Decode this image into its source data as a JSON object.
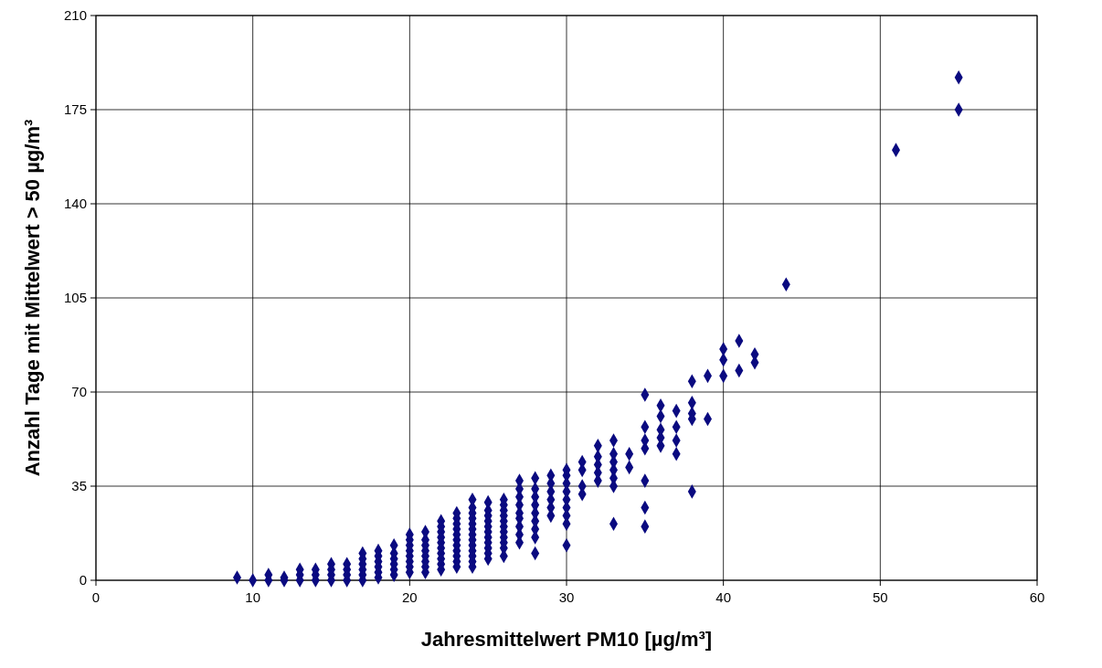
{
  "chart_data": {
    "type": "scatter",
    "xlabel": "Jahresmittelwert PM10 [µg/m³]",
    "ylabel": "Anzahl Tage mit Mittelwert  > 50 µg/m³",
    "xlim": [
      0,
      60
    ],
    "xticks": [
      0,
      10,
      20,
      30,
      40,
      50,
      60
    ],
    "ylim": [
      0,
      210
    ],
    "yticks": [
      0,
      35,
      70,
      105,
      140,
      175,
      210
    ],
    "grid": true,
    "marker": "diamond",
    "series": [
      {
        "color": "#0a0a80",
        "x": [
          9,
          10,
          11,
          11,
          12,
          12,
          13,
          13,
          13,
          14,
          14,
          14,
          15,
          15,
          15,
          15,
          16,
          16,
          16,
          16,
          17,
          17,
          17,
          17,
          17,
          17,
          18,
          18,
          18,
          18,
          18,
          18,
          19,
          19,
          19,
          19,
          19,
          19,
          20,
          20,
          20,
          20,
          20,
          20,
          20,
          20,
          21,
          21,
          21,
          21,
          21,
          21,
          21,
          21,
          22,
          22,
          22,
          22,
          22,
          22,
          22,
          22,
          22,
          22,
          23,
          23,
          23,
          23,
          23,
          23,
          23,
          23,
          23,
          23,
          23,
          24,
          24,
          24,
          24,
          24,
          24,
          24,
          24,
          24,
          24,
          24,
          24,
          24,
          25,
          25,
          25,
          25,
          25,
          25,
          25,
          25,
          25,
          25,
          25,
          26,
          26,
          26,
          26,
          26,
          26,
          26,
          26,
          26,
          26,
          26,
          27,
          27,
          27,
          27,
          27,
          27,
          27,
          27,
          27,
          28,
          28,
          28,
          28,
          28,
          28,
          28,
          28,
          28,
          29,
          29,
          29,
          29,
          29,
          29,
          30,
          30,
          30,
          30,
          30,
          30,
          30,
          30,
          30,
          31,
          31,
          31,
          31,
          32,
          32,
          32,
          32,
          32,
          33,
          33,
          33,
          33,
          33,
          33,
          33,
          34,
          34,
          35,
          35,
          35,
          35,
          35,
          35,
          35,
          36,
          36,
          36,
          36,
          36,
          37,
          37,
          37,
          37,
          38,
          38,
          38,
          38,
          38,
          39,
          39,
          40,
          40,
          40,
          41,
          41,
          42,
          42,
          44,
          51,
          55,
          55
        ],
        "values": [
          1,
          0,
          0,
          2,
          0,
          1,
          0,
          2,
          4,
          0,
          2,
          4,
          0,
          2,
          4,
          6,
          0,
          2,
          4,
          6,
          0,
          2,
          4,
          6,
          8,
          10,
          1,
          3,
          5,
          7,
          9,
          11,
          2,
          4,
          6,
          8,
          10,
          13,
          3,
          5,
          7,
          9,
          11,
          13,
          15,
          17,
          3,
          5,
          7,
          9,
          11,
          13,
          15,
          18,
          4,
          6,
          8,
          10,
          12,
          14,
          16,
          18,
          20,
          22,
          5,
          7,
          9,
          11,
          13,
          15,
          17,
          19,
          21,
          23,
          25,
          5,
          7,
          9,
          11,
          13,
          15,
          17,
          19,
          21,
          23,
          25,
          27,
          30,
          8,
          10,
          12,
          14,
          16,
          18,
          20,
          22,
          24,
          26,
          29,
          9,
          12,
          14,
          16,
          18,
          20,
          22,
          24,
          26,
          28,
          30,
          14,
          17,
          20,
          23,
          25,
          28,
          31,
          34,
          37,
          10,
          16,
          19,
          22,
          25,
          28,
          31,
          34,
          38,
          24,
          27,
          30,
          33,
          36,
          39,
          13,
          21,
          24,
          27,
          30,
          33,
          36,
          39,
          41,
          32,
          35,
          41,
          44,
          37,
          40,
          43,
          46,
          50,
          21,
          35,
          38,
          41,
          44,
          47,
          52,
          42,
          47,
          20,
          27,
          37,
          49,
          52,
          57,
          69,
          50,
          53,
          56,
          61,
          65,
          47,
          52,
          57,
          63,
          33,
          60,
          62,
          66,
          74,
          60,
          76,
          76,
          82,
          86,
          78,
          89,
          81,
          84,
          110,
          160,
          175,
          187
        ]
      }
    ]
  }
}
